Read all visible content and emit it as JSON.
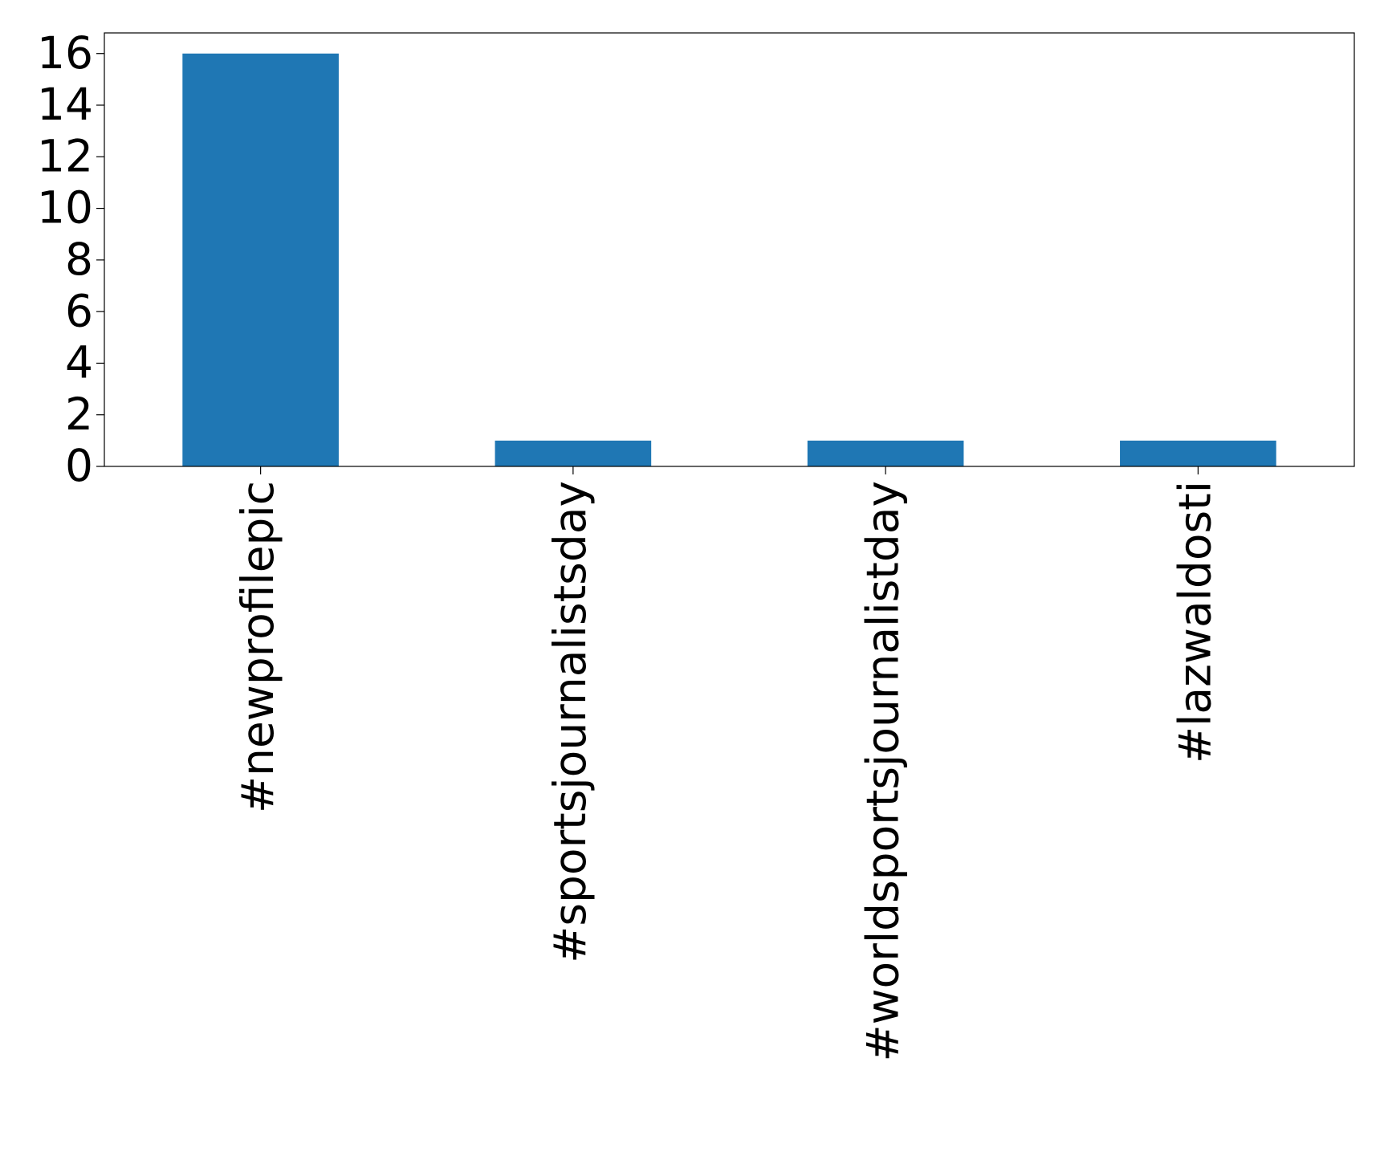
{
  "chart_data": {
    "type": "bar",
    "categories": [
      "#newprofilepic",
      "#sportsjournalistsday",
      "#worldsportsjournalistday",
      "#lazwaldosti"
    ],
    "values": [
      16,
      1,
      1,
      1
    ],
    "color": "#1f77b4",
    "ylim": [
      0,
      16.8
    ],
    "yticks": [
      0,
      2,
      4,
      6,
      8,
      10,
      12,
      14,
      16
    ],
    "grid": false
  }
}
